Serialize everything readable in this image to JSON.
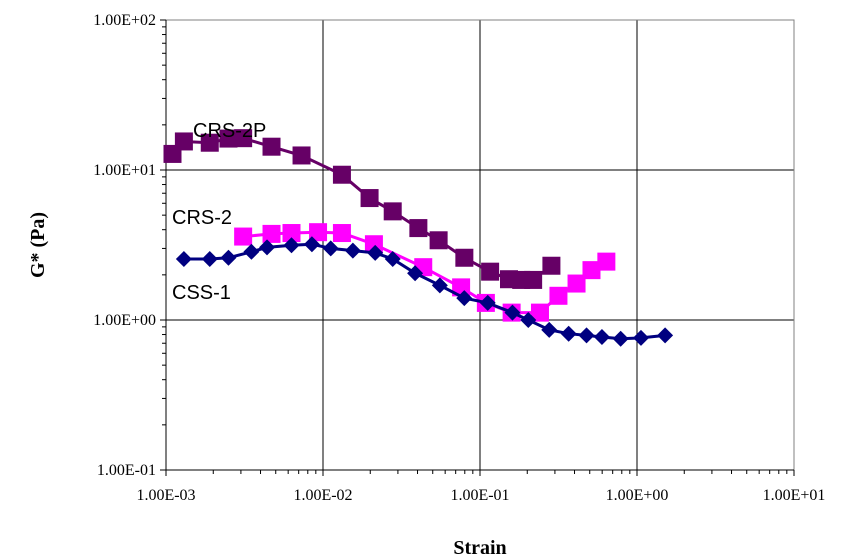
{
  "chart_data": {
    "type": "line",
    "title": "",
    "xlabel": "Strain",
    "ylabel": "G* (Pa)",
    "x_scale": "log",
    "y_scale": "log",
    "xlim": [
      0.001,
      10
    ],
    "ylim": [
      0.1,
      100
    ],
    "x_tick_labels": [
      "1.00E-03",
      "1.00E-02",
      "1.00E-01",
      "1.00E+00",
      "1.00E+01"
    ],
    "y_tick_labels": [
      "1.00E-01",
      "1.00E+00",
      "1.00E+01",
      "1.00E+02"
    ],
    "x_ticks": [
      0.001,
      0.01,
      0.1,
      1,
      10
    ],
    "y_ticks": [
      0.1,
      1,
      10,
      100
    ],
    "grid": true,
    "legend": "none",
    "series": [
      {
        "name": "CRS-2P",
        "color": "#660066",
        "marker": "square",
        "points": [
          [
            0.0011,
            12.8
          ],
          [
            0.0013,
            15.5
          ],
          [
            0.0019,
            15.2
          ],
          [
            0.0025,
            16.2
          ],
          [
            0.0031,
            16.3
          ],
          [
            0.0047,
            14.3
          ],
          [
            0.0073,
            12.5
          ],
          [
            0.0132,
            9.3
          ],
          [
            0.0198,
            6.5
          ],
          [
            0.0278,
            5.3
          ],
          [
            0.0405,
            4.1
          ],
          [
            0.0545,
            3.4
          ],
          [
            0.0795,
            2.6
          ],
          [
            0.116,
            2.1
          ],
          [
            0.153,
            1.87
          ],
          [
            0.183,
            1.85
          ],
          [
            0.218,
            1.85
          ],
          [
            0.285,
            2.3
          ]
        ]
      },
      {
        "name": "CRS-2",
        "color": "#ff00ff",
        "marker": "square",
        "points": [
          [
            0.0031,
            3.6
          ],
          [
            0.0047,
            3.75
          ],
          [
            0.0063,
            3.8
          ],
          [
            0.0093,
            3.85
          ],
          [
            0.0132,
            3.8
          ],
          [
            0.0211,
            3.2
          ],
          [
            0.0435,
            2.25
          ],
          [
            0.0758,
            1.65
          ],
          [
            0.109,
            1.3
          ],
          [
            0.159,
            1.12
          ],
          [
            0.241,
            1.12
          ],
          [
            0.316,
            1.45
          ],
          [
            0.412,
            1.75
          ],
          [
            0.513,
            2.15
          ],
          [
            0.638,
            2.45
          ]
        ]
      },
      {
        "name": "CSS-1",
        "color": "#000080",
        "marker": "diamond",
        "points": [
          [
            0.0013,
            2.55
          ],
          [
            0.0019,
            2.55
          ],
          [
            0.0025,
            2.6
          ],
          [
            0.0035,
            2.85
          ],
          [
            0.0044,
            3.05
          ],
          [
            0.0063,
            3.15
          ],
          [
            0.0085,
            3.2
          ],
          [
            0.0112,
            3.0
          ],
          [
            0.0155,
            2.9
          ],
          [
            0.0215,
            2.8
          ],
          [
            0.0278,
            2.55
          ],
          [
            0.0386,
            2.05
          ],
          [
            0.0555,
            1.7
          ],
          [
            0.0794,
            1.4
          ],
          [
            0.112,
            1.3
          ],
          [
            0.161,
            1.12
          ],
          [
            0.203,
            1.0
          ],
          [
            0.276,
            0.86
          ],
          [
            0.367,
            0.81
          ],
          [
            0.477,
            0.79
          ],
          [
            0.598,
            0.77
          ],
          [
            0.787,
            0.75
          ],
          [
            1.06,
            0.76
          ],
          [
            1.51,
            0.79
          ]
        ]
      }
    ],
    "annotations": [
      {
        "text": "CRS-2P",
        "series": "CRS-2P"
      },
      {
        "text": "CRS-2",
        "series": "CRS-2"
      },
      {
        "text": "CSS-1",
        "series": "CSS-1"
      }
    ]
  }
}
